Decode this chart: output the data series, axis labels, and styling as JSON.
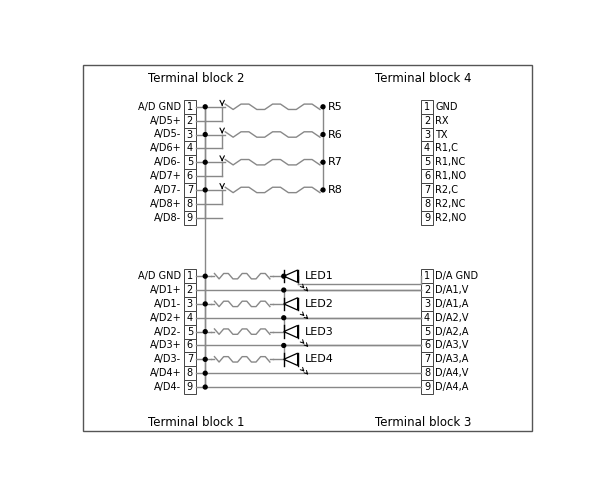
{
  "bg_color": "#ffffff",
  "line_color": "#888888",
  "dark_color": "#000000",
  "title_tb2": "Terminal block 2",
  "title_tb4": "Terminal block 4",
  "title_tb1": "Terminal block 1",
  "title_tb3": "Terminal block 3",
  "tb2_labels": [
    "A/D8-",
    "A/D8+",
    "A/D7-",
    "A/D7+",
    "A/D6-",
    "A/D6+",
    "A/D5-",
    "A/D5+",
    "A/D GND"
  ],
  "tb4_labels": [
    "R2,NO",
    "R2,NC",
    "R2,C",
    "R1,NO",
    "R1,NC",
    "R1,C",
    "TX",
    "RX",
    "GND"
  ],
  "tb1_labels": [
    "A/D4-",
    "A/D4+",
    "A/D3-",
    "A/D3+",
    "A/D2-",
    "A/D2+",
    "A/D1-",
    "A/D1+",
    "A/D GND"
  ],
  "tb3_labels": [
    "D/A4,A",
    "D/A4,V",
    "D/A3,A",
    "D/A3,V",
    "D/A2,A",
    "D/A2,V",
    "D/A1,A",
    "D/A1,V",
    "D/A GND"
  ],
  "res_labels": [
    "R8",
    "R7",
    "R6",
    "R5"
  ],
  "led_labels": [
    "LED4",
    "LED3",
    "LED2",
    "LED1"
  ]
}
